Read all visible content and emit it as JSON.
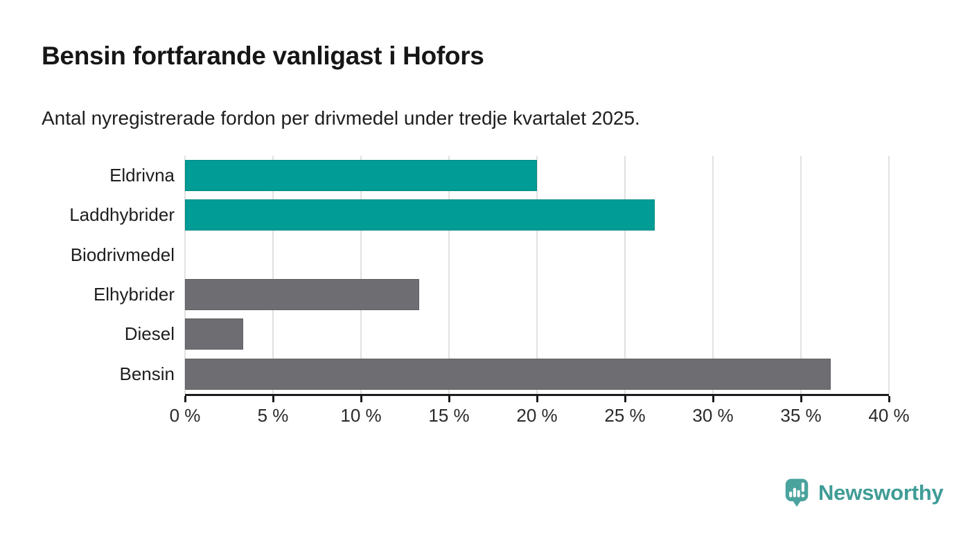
{
  "title": "Bensin fortfarande vanligast i Hofors",
  "subtitle": "Antal nyregistrerade fordon per drivmedel under tredje kvartalet 2025.",
  "chart_data": {
    "type": "bar",
    "orientation": "horizontal",
    "title": "Bensin fortfarande vanligast i Hofors",
    "subtitle": "Antal nyregistrerade fordon per drivmedel under tredje kvartalet 2025.",
    "categories": [
      "Eldrivna",
      "Laddhybrider",
      "Biodrivmedel",
      "Elhybrider",
      "Diesel",
      "Bensin"
    ],
    "values": [
      20,
      26.7,
      0,
      13.3,
      3.3,
      36.7
    ],
    "unit": "%",
    "bar_colors": [
      "#009c95",
      "#009c95",
      "#009c95",
      "#6d6d72",
      "#6d6d72",
      "#6d6d72"
    ],
    "xlim": [
      0,
      40
    ],
    "x_tick_labels": [
      "0 %",
      "5 %",
      "10 %",
      "15 %",
      "20 %",
      "25 %",
      "30 %",
      "35 %",
      "40 %"
    ],
    "grid": true,
    "legend": "none"
  },
  "branding": {
    "logo_text": "Newsworthy",
    "logo_icon": "speech-bubble-bar-chart-icon"
  },
  "colors": {
    "highlight_bar": "#009c95",
    "default_bar": "#6d6d72",
    "gridline": "#e1e1e1",
    "axis": "#1b1b1b",
    "title_text": "#161616",
    "brand_icon": "#4ba39d",
    "brand_text": "#3f9c96"
  }
}
